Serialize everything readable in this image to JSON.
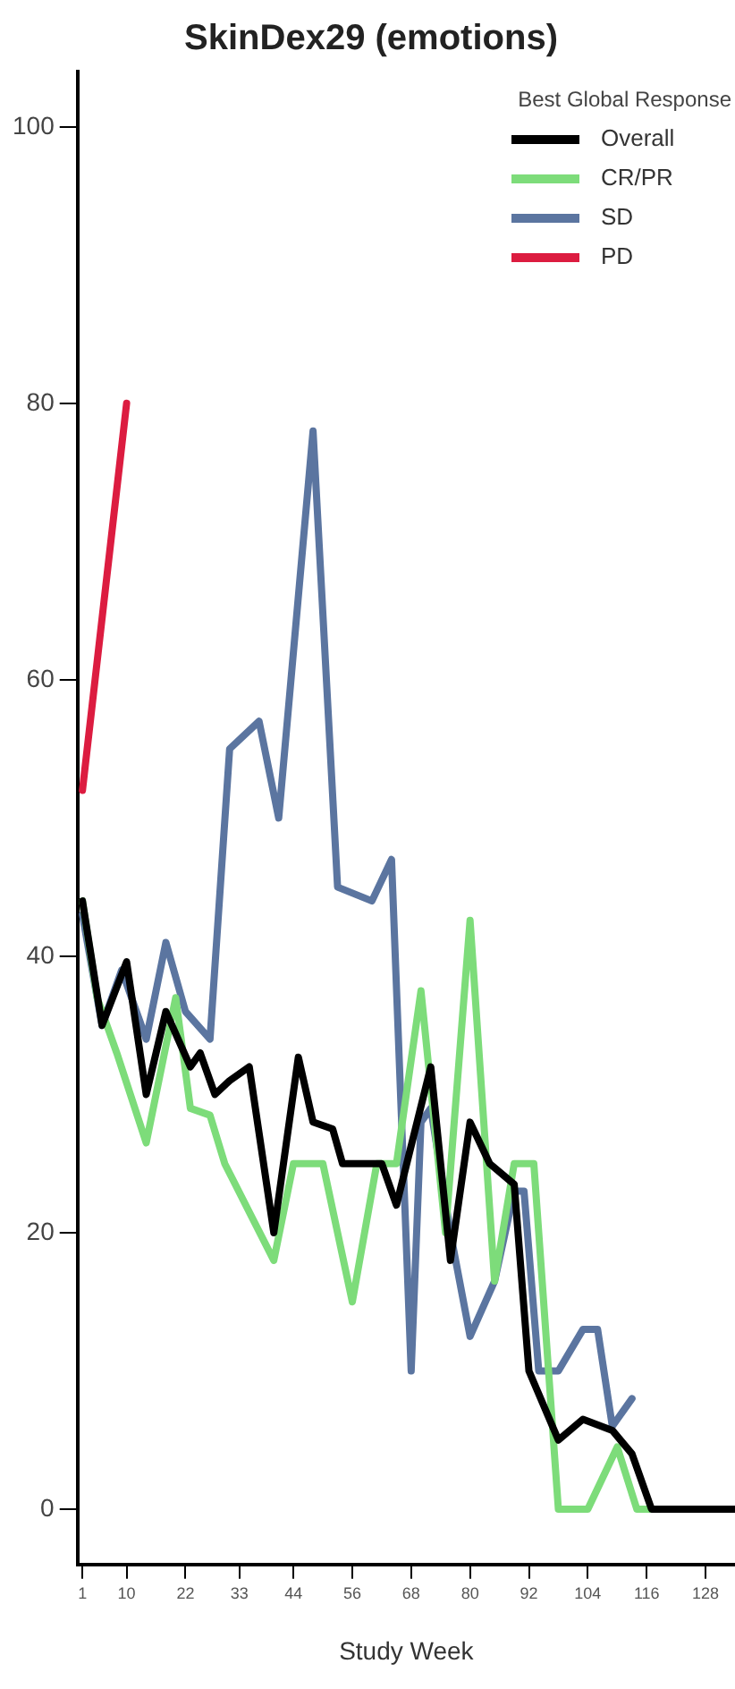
{
  "chart_data": {
    "type": "line",
    "title": "SkinDex29 (emotions)",
    "xlabel": "Study Week",
    "legend_title": "Best Global Response",
    "legend": "top right",
    "grid": false,
    "marker": "none",
    "line_style": "solid",
    "xlim": [
      0,
      134
    ],
    "xticks": [
      1,
      10,
      22,
      33,
      44,
      56,
      68,
      80,
      92,
      104,
      116,
      128
    ],
    "ylim": [
      -4,
      104
    ],
    "yticks": [
      0,
      20,
      40,
      60,
      80,
      100
    ],
    "series": [
      {
        "name": "Overall",
        "color": "#000000",
        "x": [
          1,
          5,
          10,
          14,
          18,
          23,
          25,
          28,
          31,
          35,
          40,
          45,
          48,
          52,
          54,
          62,
          65,
          72,
          76,
          80,
          84,
          89,
          92,
          98,
          103,
          109,
          113,
          117,
          134
        ],
        "values": [
          44,
          35,
          39.6,
          30,
          36,
          32,
          33,
          30,
          31,
          32,
          20,
          32.7,
          28,
          27.5,
          25,
          25,
          22,
          32,
          18,
          28,
          25,
          23.5,
          10,
          5,
          6.5,
          5.7,
          4,
          0,
          0
        ]
      },
      {
        "name": "CR/PR",
        "color": "#7ddc7a",
        "x": [
          1,
          4,
          8,
          14,
          20,
          23,
          27,
          30,
          40,
          44,
          50,
          56,
          61,
          65,
          70,
          75,
          80,
          85,
          89,
          93,
          98,
          104,
          110,
          114,
          134
        ],
        "values": [
          44,
          37,
          33,
          26.5,
          37,
          29,
          28.5,
          25,
          18,
          25,
          25,
          15,
          25,
          25,
          37.5,
          20,
          42.6,
          16.5,
          25,
          25,
          0,
          0,
          4.5,
          0,
          0
        ]
      },
      {
        "name": "SD",
        "color": "#5b75a0",
        "x": [
          1,
          5,
          9,
          14,
          18,
          22,
          27,
          31,
          37,
          41,
          48,
          53,
          60,
          64,
          68,
          70,
          72,
          76,
          80,
          85,
          89,
          91,
          94,
          98,
          103,
          106,
          109,
          113
        ],
        "values": [
          43,
          35,
          39,
          34,
          41,
          36,
          34,
          55,
          57,
          50,
          78,
          45,
          44,
          47,
          10,
          28,
          29,
          20,
          12.5,
          16.5,
          23,
          23,
          10,
          10,
          13,
          13,
          6,
          8
        ]
      },
      {
        "name": "PD",
        "color": "#dc1c40",
        "x": [
          1,
          10
        ],
        "values": [
          52,
          80
        ]
      }
    ]
  }
}
